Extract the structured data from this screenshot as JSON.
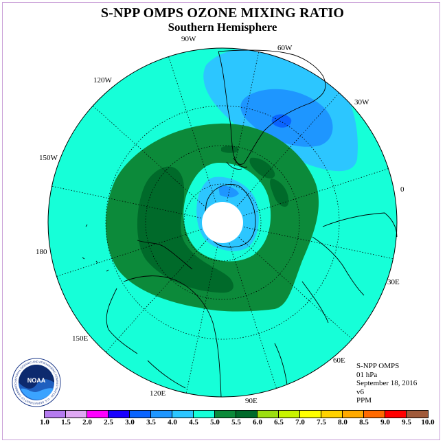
{
  "title": "S-NPP OMPS OZONE MIXING RATIO",
  "subtitle": "Southern Hemisphere",
  "longitude_labels": [
    "90W",
    "60W",
    "120W",
    "30W",
    "150W",
    "0",
    "180",
    "30E",
    "150E",
    "60E",
    "120E",
    "90E"
  ],
  "info": {
    "instrument": "S-NPP OMPS",
    "level": "01 hPa",
    "date": "September 18, 2016",
    "version": "v6",
    "unit": "PPM"
  },
  "logo_text": "NOAA",
  "logo_ring_text": "NATIONAL OCEANIC AND ATMOSPHERIC ADMINISTRATION · U.S. DEPARTMENT OF COMMERCE",
  "colorbar": {
    "ticks": [
      "1.0",
      "1.5",
      "2.0",
      "2.5",
      "3.0",
      "3.5",
      "4.0",
      "4.5",
      "5.0",
      "5.5",
      "6.0",
      "6.5",
      "7.0",
      "7.5",
      "8.0",
      "8.5",
      "9.0",
      "9.5",
      "10.0"
    ],
    "colors": [
      "#b57bf0",
      "#dfa8f4",
      "#ff00ff",
      "#1a00ff",
      "#0a64ff",
      "#1e96ff",
      "#2cc6ff",
      "#16ffd8",
      "#0c8a3a",
      "#006a2a",
      "#9cde10",
      "#c8f400",
      "#ffff00",
      "#ffd200",
      "#ffaa00",
      "#ff6a00",
      "#ff0000",
      "#a05a3a"
    ]
  },
  "legend_colors": {
    "ppm_4_5_to_5_0": "#16ffd8",
    "ppm_5_0_to_5_5": "#0c8a3a",
    "ppm_5_5_to_6_0": "#006a2a",
    "ppm_4_0_to_4_5": "#2cc6ff",
    "ppm_3_5_to_4_0": "#1e96ff",
    "ppm_3_0_to_3_5": "#0a64ff",
    "missing": "#ffffff"
  }
}
